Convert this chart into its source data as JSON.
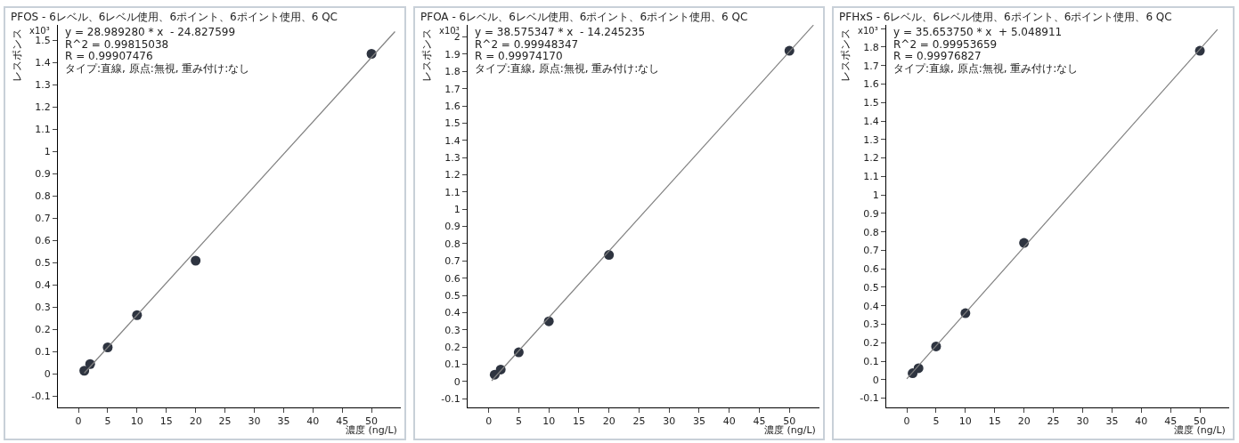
{
  "chart_data": [
    {
      "type": "scatter",
      "title": "PFOS - 6レベル、6レベル使用、6ポイント、6ポイント使用、6 QC",
      "xlabel": "濃度 (ng/L)",
      "ylabel": "レスポンス",
      "annotations": [
        "x10³",
        "y = 28.989280 * x  - 24.827599",
        "R^2 = 0.99815038",
        "R = 0.99907476",
        "タイプ:直線, 原点:無視, 重み付け:なし"
      ],
      "x": [
        1,
        2,
        5,
        10,
        20,
        50
      ],
      "series": [
        {
          "color": "#2e3440",
          "values": [
            0.015,
            0.045,
            0.12,
            0.265,
            0.51,
            1.44
          ]
        },
        {
          "type": "line",
          "marker": "none",
          "color": "#808080",
          "x": [
            1,
            54
          ],
          "values": [
            0.004,
            1.54
          ]
        }
      ],
      "xlim": [
        -3.5,
        55
      ],
      "ylim": [
        -0.15,
        1.57
      ],
      "xticks": [
        0,
        5,
        10,
        15,
        20,
        25,
        30,
        35,
        40,
        45,
        50
      ],
      "yticks": [
        -0.1,
        0,
        0.1,
        0.2,
        0.3,
        0.4,
        0.5,
        0.6,
        0.7,
        0.8,
        0.9,
        1,
        1.1,
        1.2,
        1.3,
        1.4,
        1.5
      ],
      "marker": "circle"
    },
    {
      "type": "scatter",
      "title": "PFOA - 6レベル、6レベル使用、6ポイント、6ポイント使用、6 QC",
      "xlabel": "濃度 (ng/L)",
      "ylabel": "レスポンス",
      "annotations": [
        "x10³",
        "y = 38.575347 * x  - 14.245235",
        "R^2 = 0.99948347",
        "R = 0.99974170",
        "タイプ:直線, 原点:無視, 重み付け:なし"
      ],
      "x": [
        1,
        2,
        5,
        10,
        20,
        50
      ],
      "series": [
        {
          "color": "#2e3440",
          "values": [
            0.04,
            0.07,
            0.17,
            0.35,
            0.735,
            1.92
          ]
        },
        {
          "type": "line",
          "marker": "none",
          "color": "#808080",
          "x": [
            0.5,
            54
          ],
          "values": [
            0.005,
            2.069
          ]
        }
      ],
      "xlim": [
        -3.5,
        55
      ],
      "ylim": [
        -0.15,
        2.07
      ],
      "xticks": [
        0,
        5,
        10,
        15,
        20,
        25,
        30,
        35,
        40,
        45,
        50
      ],
      "yticks": [
        -0.1,
        0,
        0.1,
        0.2,
        0.3,
        0.4,
        0.5,
        0.6,
        0.7,
        0.8,
        0.9,
        1,
        1.1,
        1.2,
        1.3,
        1.4,
        1.5,
        1.6,
        1.7,
        1.8,
        1.9,
        2
      ],
      "marker": "circle"
    },
    {
      "type": "scatter",
      "title": "PFHxS - 6レベル、6レベル使用、6ポイント、6ポイント使用、6 QC",
      "xlabel": "濃度 (ng/L)",
      "ylabel": "レスポンス",
      "annotations": [
        "x10³",
        "y = 35.653750 * x  + 5.048911",
        "R^2 = 0.99953659",
        "R = 0.99976827",
        "タイプ:直線, 原点:無視, 重み付け:なし"
      ],
      "x": [
        1,
        2,
        5,
        10,
        20,
        50
      ],
      "series": [
        {
          "color": "#2e3440",
          "values": [
            0.035,
            0.062,
            0.18,
            0.36,
            0.74,
            1.78
          ]
        },
        {
          "type": "line",
          "marker": "none",
          "color": "#808080",
          "x": [
            0,
            53
          ],
          "values": [
            0.005,
            1.895
          ]
        }
      ],
      "xlim": [
        -3.5,
        55
      ],
      "ylim": [
        -0.15,
        1.92
      ],
      "xticks": [
        0,
        5,
        10,
        15,
        20,
        25,
        30,
        35,
        40,
        45,
        50
      ],
      "yticks": [
        -0.1,
        0,
        0.1,
        0.2,
        0.3,
        0.4,
        0.5,
        0.6,
        0.7,
        0.8,
        0.9,
        1,
        1.1,
        1.2,
        1.3,
        1.4,
        1.5,
        1.6,
        1.7,
        1.8,
        {
          "value": 1.9,
          "label": null
        }
      ],
      "marker": "circle"
    }
  ]
}
